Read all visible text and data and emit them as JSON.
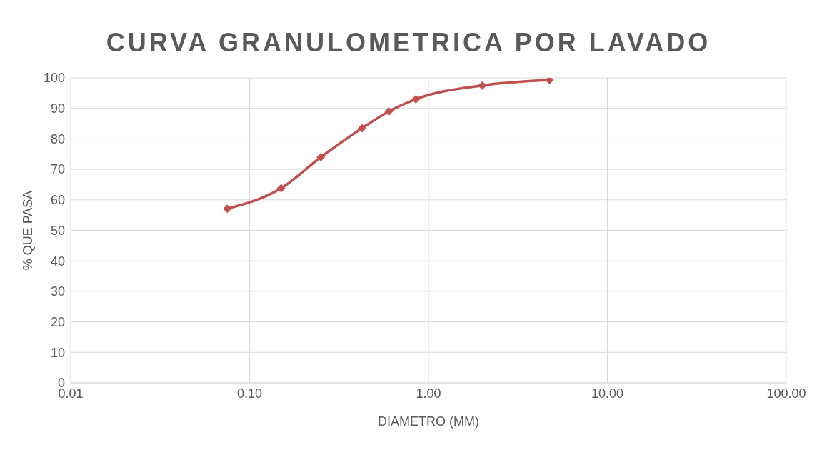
{
  "chart_data": {
    "type": "line",
    "title": "CURVA GRANULOMETRICA POR LAVADO",
    "xlabel": "DIAMETRO (MM)",
    "ylabel": "% QUE PASA",
    "series": [
      {
        "color": "#c0504d",
        "x": [
          4.75,
          2.0,
          0.85,
          0.6,
          0.425,
          0.25,
          0.15,
          0.075
        ],
        "values": [
          99.3,
          97.5,
          93,
          89,
          83.5,
          74,
          63.8,
          57.1
        ]
      }
    ],
    "log": "x",
    "xlim": [
      0.01,
      100
    ],
    "xticks": [
      {
        "value": 0.01,
        "label": "0.01"
      },
      {
        "value": 0.1,
        "label": "0.10"
      },
      {
        "value": 1,
        "label": "1.00"
      },
      {
        "value": 10,
        "label": "10.00"
      },
      {
        "value": 100,
        "label": "100.00"
      }
    ],
    "ylim": [
      0,
      100
    ],
    "yticks": [
      0,
      10,
      20,
      30,
      40,
      50,
      60,
      70,
      80,
      90,
      100
    ],
    "grid": true,
    "legend": false,
    "marker": "diamond",
    "line_style": "solid"
  }
}
